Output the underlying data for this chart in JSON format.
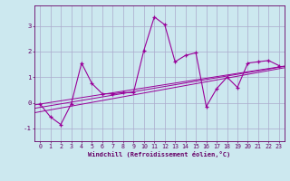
{
  "xlabel": "Windchill (Refroidissement éolien,°C)",
  "x_data": [
    0,
    1,
    2,
    3,
    4,
    5,
    6,
    7,
    8,
    9,
    10,
    11,
    12,
    13,
    14,
    15,
    16,
    17,
    18,
    19,
    20,
    21,
    22,
    23
  ],
  "y_data": [
    -0.05,
    -0.55,
    -0.85,
    -0.05,
    1.55,
    0.75,
    0.35,
    0.35,
    0.4,
    0.4,
    2.05,
    3.35,
    3.05,
    1.6,
    1.85,
    1.95,
    -0.15,
    0.55,
    1.0,
    0.6,
    1.55,
    1.6,
    1.65,
    1.45
  ],
  "line_color": "#990099",
  "background_color": "#cce8ef",
  "grid_color": "#aaaacc",
  "ylim": [
    -1.5,
    3.8
  ],
  "xlim": [
    -0.5,
    23.5
  ],
  "yticks": [
    -1,
    0,
    1,
    2,
    3
  ],
  "xticks": [
    0,
    1,
    2,
    3,
    4,
    5,
    6,
    7,
    8,
    9,
    10,
    11,
    12,
    13,
    14,
    15,
    16,
    17,
    18,
    19,
    20,
    21,
    22,
    23
  ],
  "regression_lines": [
    {
      "slope": 0.073,
      "intercept": -0.35
    },
    {
      "slope": 0.068,
      "intercept": -0.18
    },
    {
      "slope": 0.063,
      "intercept": -0.05
    }
  ],
  "label_color": "#660066",
  "xlabel_fontsize": 5.0,
  "tick_fontsize": 4.8
}
